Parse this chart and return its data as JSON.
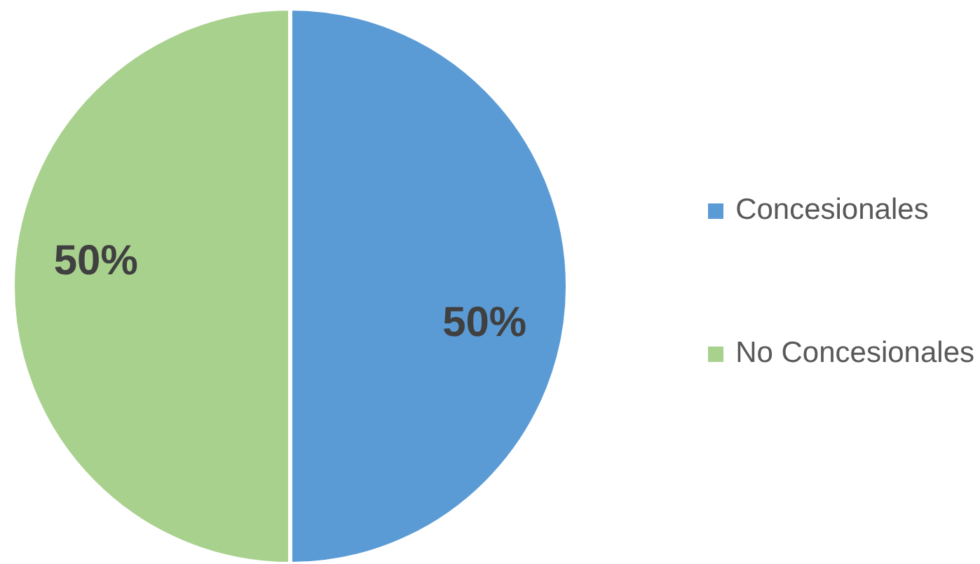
{
  "chart_data": {
    "type": "pie",
    "categories": [
      "Concesionales",
      "No Concesionales"
    ],
    "values": [
      50,
      50
    ],
    "colors": [
      "#5b9bd5",
      "#a9d18e"
    ],
    "value_labels": [
      "50%",
      "50%"
    ],
    "legend": "right"
  }
}
